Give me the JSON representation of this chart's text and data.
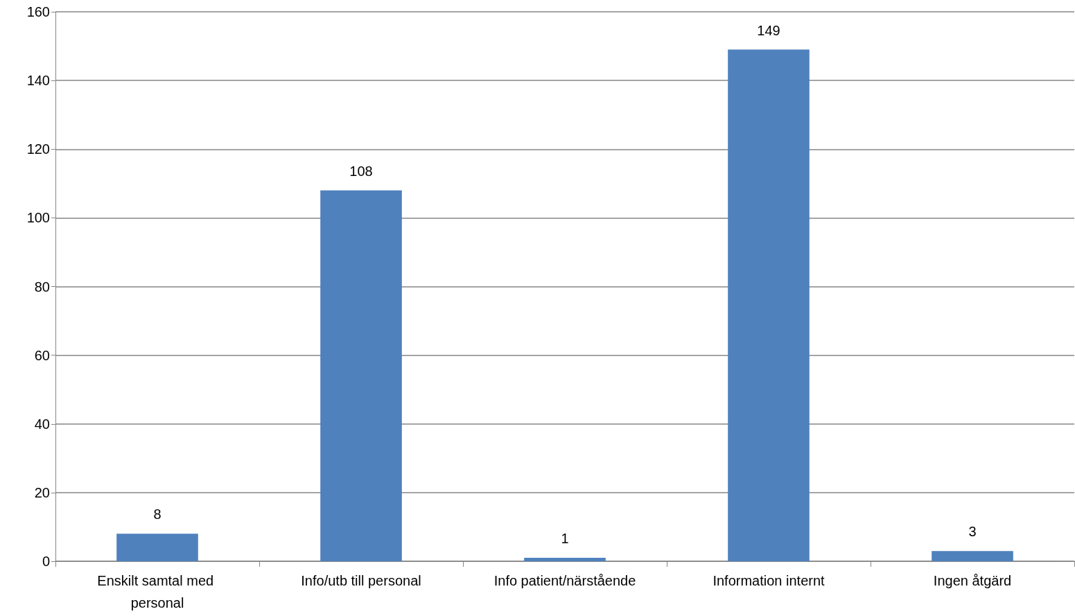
{
  "chart_data": {
    "type": "bar",
    "categories": [
      "Enskilt samtal med personal",
      "Info/utb till personal",
      "Info patient/närstående",
      "Information internt",
      "Ingen åtgärd"
    ],
    "values": [
      8,
      108,
      1,
      149,
      3
    ],
    "color": "#4f81bd",
    "ylim": [
      0,
      160
    ],
    "yticks": [
      0,
      20,
      40,
      60,
      80,
      100,
      120,
      140,
      160
    ],
    "grid": "y",
    "data_labels": true
  }
}
